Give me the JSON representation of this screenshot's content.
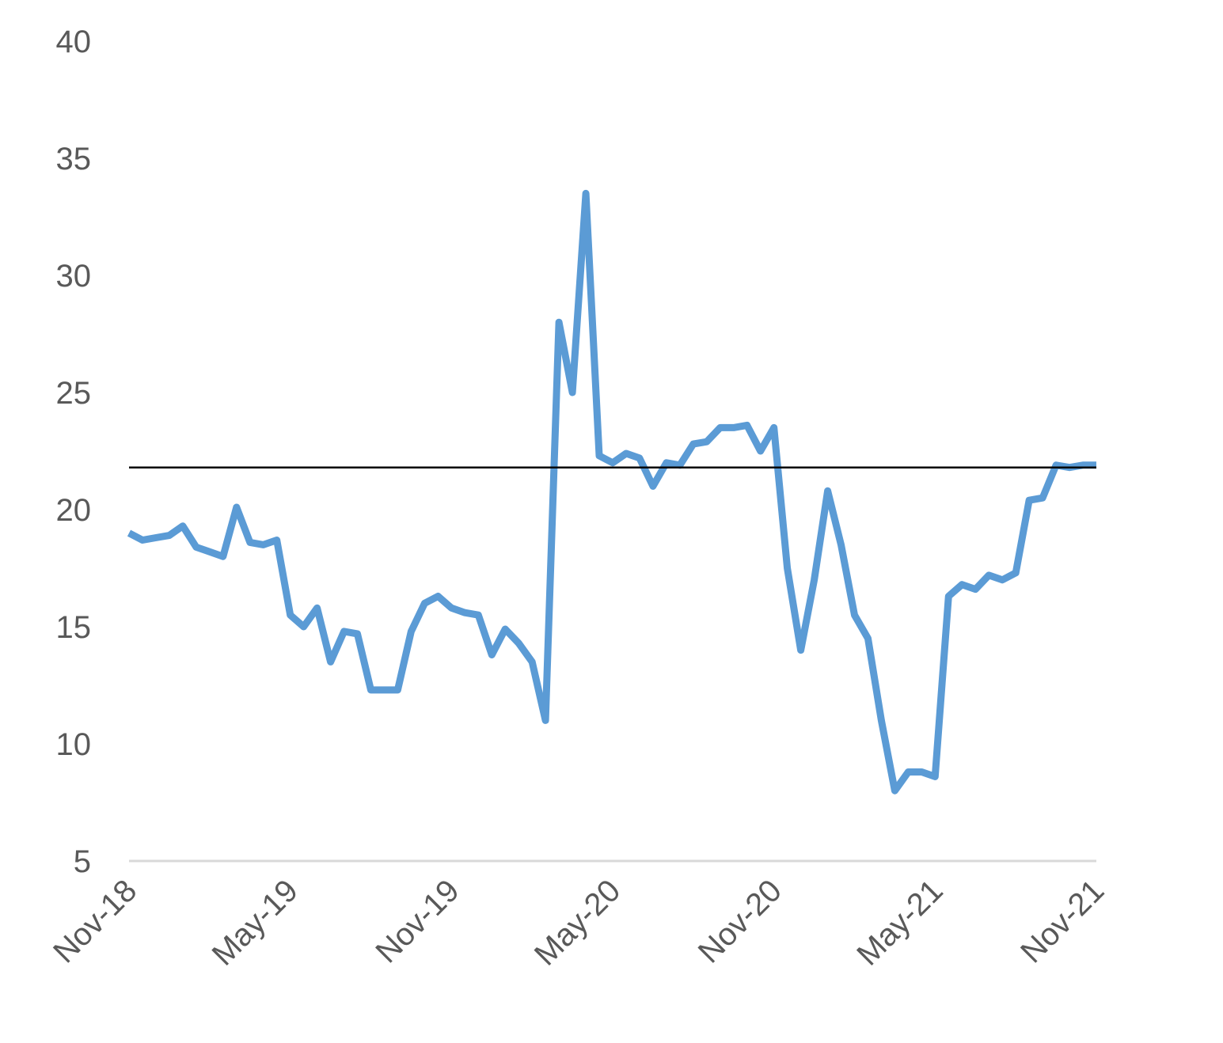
{
  "chart_data": {
    "type": "line",
    "categories": [
      "Nov-18",
      null,
      null,
      null,
      null,
      null,
      null,
      null,
      null,
      null,
      null,
      null,
      "May-19",
      null,
      null,
      null,
      null,
      null,
      null,
      null,
      null,
      null,
      null,
      null,
      "Nov-19",
      null,
      null,
      null,
      null,
      null,
      null,
      null,
      null,
      null,
      null,
      null,
      "May-20",
      null,
      null,
      null,
      null,
      null,
      null,
      null,
      null,
      null,
      null,
      null,
      "Nov-20",
      null,
      null,
      null,
      null,
      null,
      null,
      null,
      null,
      null,
      null,
      null,
      "May-21",
      null,
      null,
      null,
      null,
      null,
      null,
      null,
      null,
      null,
      null,
      null,
      "Nov-21"
    ],
    "series": [
      {
        "color": "#5b9bd5",
        "values": [
          19.0,
          18.7,
          18.8,
          18.9,
          19.3,
          18.4,
          18.2,
          18.0,
          20.1,
          18.6,
          18.5,
          18.7,
          15.5,
          15.0,
          15.8,
          13.5,
          14.8,
          14.7,
          12.3,
          12.3,
          12.3,
          14.8,
          16.0,
          16.3,
          15.8,
          15.6,
          15.5,
          13.8,
          14.9,
          14.3,
          13.5,
          11.0,
          28.0,
          25.0,
          33.5,
          22.3,
          22.0,
          22.4,
          22.2,
          21.0,
          22.0,
          21.9,
          22.8,
          22.9,
          23.5,
          23.5,
          23.6,
          22.5,
          23.5,
          17.5,
          14.0,
          17.0,
          20.8,
          18.5,
          15.5,
          14.5,
          11.0,
          8.0,
          8.8,
          8.8,
          8.6,
          16.3,
          16.8,
          16.6,
          17.2,
          17.0,
          17.3,
          20.4,
          20.5,
          21.9,
          21.8,
          21.9,
          21.9
        ]
      }
    ],
    "reference_line": 21.8,
    "ylim": [
      5,
      40
    ],
    "yticks": [
      5,
      10,
      15,
      20,
      25,
      30,
      35,
      40
    ]
  }
}
